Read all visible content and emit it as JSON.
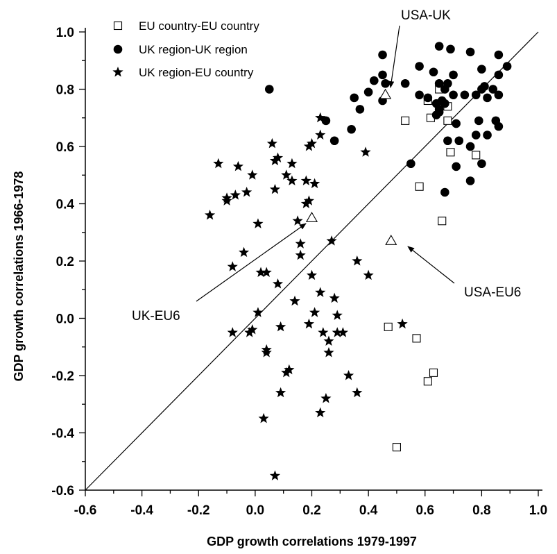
{
  "chart_data": {
    "type": "scatter",
    "xlabel": "GDP growth correlations 1979-1997",
    "ylabel": "GDP growth correlations 1966-1978",
    "xlim": [
      -0.6,
      1.0
    ],
    "ylim": [
      -0.6,
      1.0
    ],
    "x_ticks": [
      "-0.6",
      "-0.4",
      "-0.2",
      "0.0",
      "0.2",
      "0.4",
      "0.6",
      "0.8",
      "1.0"
    ],
    "y_ticks": [
      "-0.6",
      "-0.4",
      "-0.2",
      "0.0",
      "0.2",
      "0.4",
      "0.6",
      "0.8",
      "1.0"
    ],
    "grid": false,
    "legend_position": "top-left",
    "reference_line": {
      "from": [
        -0.6,
        -0.6
      ],
      "to": [
        1.0,
        1.0
      ]
    },
    "series": [
      {
        "name": "EU country-EU country",
        "marker": "open-square",
        "points": [
          [
            0.65,
            0.8
          ],
          [
            0.61,
            0.76
          ],
          [
            0.68,
            0.74
          ],
          [
            0.53,
            0.69
          ],
          [
            0.62,
            0.7
          ],
          [
            0.68,
            0.69
          ],
          [
            0.69,
            0.58
          ],
          [
            0.78,
            0.57
          ],
          [
            0.58,
            0.46
          ],
          [
            0.66,
            0.34
          ],
          [
            0.47,
            -0.03
          ],
          [
            0.57,
            -0.07
          ],
          [
            0.63,
            -0.19
          ],
          [
            0.61,
            -0.22
          ],
          [
            0.5,
            -0.45
          ]
        ]
      },
      {
        "name": "UK region-UK region",
        "marker": "filled-circle",
        "points": [
          [
            0.05,
            0.8
          ],
          [
            0.45,
            0.92
          ],
          [
            0.45,
            0.85
          ],
          [
            0.42,
            0.83
          ],
          [
            0.46,
            0.82
          ],
          [
            0.4,
            0.79
          ],
          [
            0.35,
            0.77
          ],
          [
            0.37,
            0.73
          ],
          [
            0.45,
            0.76
          ],
          [
            0.53,
            0.82
          ],
          [
            0.58,
            0.88
          ],
          [
            0.63,
            0.86
          ],
          [
            0.65,
            0.95
          ],
          [
            0.69,
            0.94
          ],
          [
            0.76,
            0.93
          ],
          [
            0.86,
            0.92
          ],
          [
            0.8,
            0.87
          ],
          [
            0.89,
            0.88
          ],
          [
            0.86,
            0.85
          ],
          [
            0.7,
            0.85
          ],
          [
            0.65,
            0.82
          ],
          [
            0.67,
            0.8
          ],
          [
            0.68,
            0.82
          ],
          [
            0.58,
            0.78
          ],
          [
            0.61,
            0.77
          ],
          [
            0.66,
            0.76
          ],
          [
            0.67,
            0.75
          ],
          [
            0.64,
            0.75
          ],
          [
            0.65,
            0.73
          ],
          [
            0.7,
            0.78
          ],
          [
            0.74,
            0.78
          ],
          [
            0.78,
            0.78
          ],
          [
            0.81,
            0.81
          ],
          [
            0.8,
            0.8
          ],
          [
            0.84,
            0.8
          ],
          [
            0.86,
            0.78
          ],
          [
            0.82,
            0.77
          ],
          [
            0.64,
            0.71
          ],
          [
            0.65,
            0.72
          ],
          [
            0.79,
            0.69
          ],
          [
            0.85,
            0.69
          ],
          [
            0.86,
            0.67
          ],
          [
            0.82,
            0.64
          ],
          [
            0.78,
            0.64
          ],
          [
            0.71,
            0.68
          ],
          [
            0.68,
            0.62
          ],
          [
            0.72,
            0.62
          ],
          [
            0.76,
            0.6
          ],
          [
            0.71,
            0.53
          ],
          [
            0.8,
            0.54
          ],
          [
            0.76,
            0.48
          ],
          [
            0.67,
            0.44
          ],
          [
            0.55,
            0.54
          ],
          [
            0.34,
            0.66
          ],
          [
            0.28,
            0.62
          ],
          [
            0.25,
            0.69
          ]
        ]
      },
      {
        "name": "UK region-EU country",
        "marker": "filled-star",
        "points": [
          [
            0.23,
            0.7
          ],
          [
            0.23,
            0.64
          ],
          [
            0.19,
            0.6
          ],
          [
            0.06,
            0.61
          ],
          [
            0.2,
            0.61
          ],
          [
            -0.13,
            0.54
          ],
          [
            -0.06,
            0.53
          ],
          [
            0.07,
            0.55
          ],
          [
            0.08,
            0.56
          ],
          [
            0.13,
            0.54
          ],
          [
            0.39,
            0.58
          ],
          [
            -0.01,
            0.5
          ],
          [
            0.11,
            0.5
          ],
          [
            0.13,
            0.48
          ],
          [
            0.18,
            0.48
          ],
          [
            0.21,
            0.47
          ],
          [
            -0.03,
            0.44
          ],
          [
            -0.07,
            0.43
          ],
          [
            -0.1,
            0.42
          ],
          [
            -0.1,
            0.41
          ],
          [
            0.07,
            0.45
          ],
          [
            0.18,
            0.4
          ],
          [
            0.19,
            0.41
          ],
          [
            -0.16,
            0.36
          ],
          [
            0.01,
            0.33
          ],
          [
            0.15,
            0.34
          ],
          [
            -0.04,
            0.23
          ],
          [
            0.16,
            0.26
          ],
          [
            0.16,
            0.22
          ],
          [
            0.27,
            0.27
          ],
          [
            -0.08,
            0.18
          ],
          [
            0.02,
            0.16
          ],
          [
            0.04,
            0.16
          ],
          [
            0.08,
            0.12
          ],
          [
            0.2,
            0.15
          ],
          [
            0.36,
            0.2
          ],
          [
            0.4,
            0.15
          ],
          [
            0.23,
            0.09
          ],
          [
            0.14,
            0.06
          ],
          [
            0.28,
            0.07
          ],
          [
            0.01,
            0.02
          ],
          [
            0.21,
            0.02
          ],
          [
            0.29,
            0.01
          ],
          [
            0.19,
            -0.02
          ],
          [
            0.09,
            -0.03
          ],
          [
            -0.01,
            -0.04
          ],
          [
            -0.02,
            -0.05
          ],
          [
            -0.08,
            -0.05
          ],
          [
            0.24,
            -0.05
          ],
          [
            0.29,
            -0.05
          ],
          [
            0.31,
            -0.05
          ],
          [
            0.52,
            -0.02
          ],
          [
            0.04,
            -0.11
          ],
          [
            0.04,
            -0.12
          ],
          [
            0.26,
            -0.08
          ],
          [
            0.26,
            -0.12
          ],
          [
            0.11,
            -0.19
          ],
          [
            0.12,
            -0.18
          ],
          [
            0.33,
            -0.2
          ],
          [
            0.09,
            -0.26
          ],
          [
            0.25,
            -0.28
          ],
          [
            0.36,
            -0.26
          ],
          [
            0.03,
            -0.35
          ],
          [
            0.23,
            -0.33
          ],
          [
            0.07,
            -0.55
          ]
        ]
      }
    ],
    "annotations": [
      {
        "label": "USA-UK",
        "point": [
          0.46,
          0.78
        ],
        "marker": "open-triangle"
      },
      {
        "label": "UK-EU6",
        "point": [
          0.2,
          0.35
        ],
        "marker": "open-triangle"
      },
      {
        "label": "USA-EU6",
        "point": [
          0.48,
          0.27
        ],
        "marker": "open-triangle"
      }
    ]
  }
}
